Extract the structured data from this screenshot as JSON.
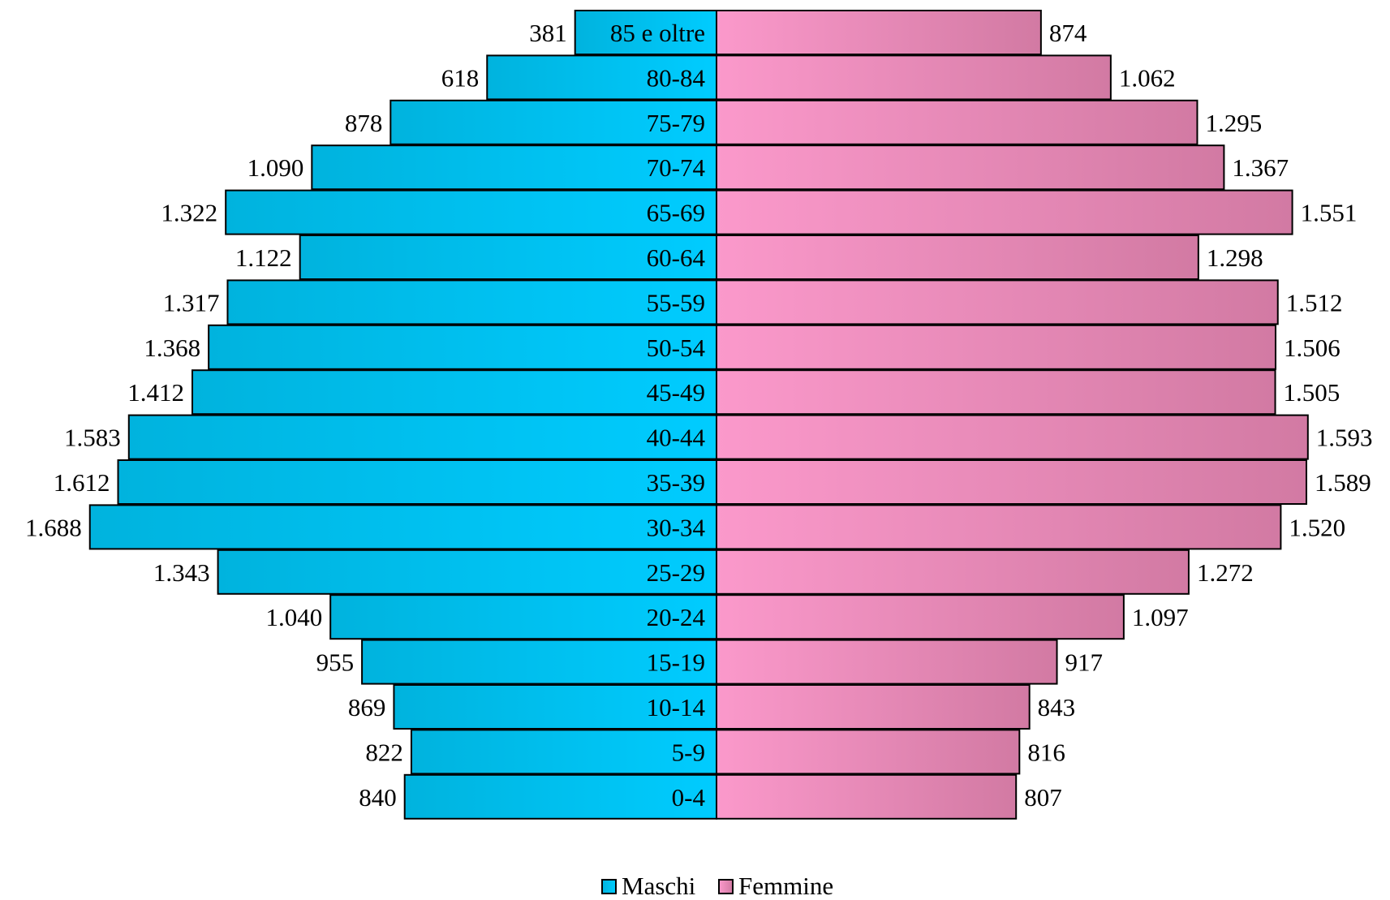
{
  "chart_data": {
    "type": "bar",
    "orientation": "horizontal",
    "layout": "population-pyramid",
    "title": "",
    "xlabel": "",
    "ylabel": "",
    "categories": [
      "85 e oltre",
      "80-84",
      "75-79",
      "70-74",
      "65-69",
      "60-64",
      "55-59",
      "50-54",
      "45-49",
      "40-44",
      "35-39",
      "30-34",
      "25-29",
      "20-24",
      "15-19",
      "10-14",
      "5-9",
      "0-4"
    ],
    "series": [
      {
        "name": "Maschi",
        "side": "left",
        "color": "#00c4f2",
        "values": [
          381,
          618,
          878,
          1090,
          1322,
          1122,
          1317,
          1368,
          1412,
          1583,
          1612,
          1688,
          1343,
          1040,
          955,
          869,
          822,
          840
        ],
        "labels": [
          "381",
          "618",
          "878",
          "1.090",
          "1.322",
          "1.122",
          "1.317",
          "1.368",
          "1.412",
          "1.583",
          "1.612",
          "1.688",
          "1.343",
          "1.040",
          "955",
          "869",
          "822",
          "840"
        ]
      },
      {
        "name": "Femmine",
        "side": "right",
        "color": "#f896c5",
        "values": [
          874,
          1062,
          1295,
          1367,
          1551,
          1298,
          1512,
          1506,
          1505,
          1593,
          1589,
          1520,
          1272,
          1097,
          917,
          843,
          816,
          807
        ],
        "labels": [
          "874",
          "1.062",
          "1.295",
          "1.367",
          "1.551",
          "1.298",
          "1.512",
          "1.506",
          "1.505",
          "1.593",
          "1.589",
          "1.520",
          "1.272",
          "1.097",
          "917",
          "843",
          "816",
          "807"
        ]
      }
    ],
    "xlim": [
      0,
      1750
    ],
    "grid": false,
    "legend": "bottom-center"
  }
}
